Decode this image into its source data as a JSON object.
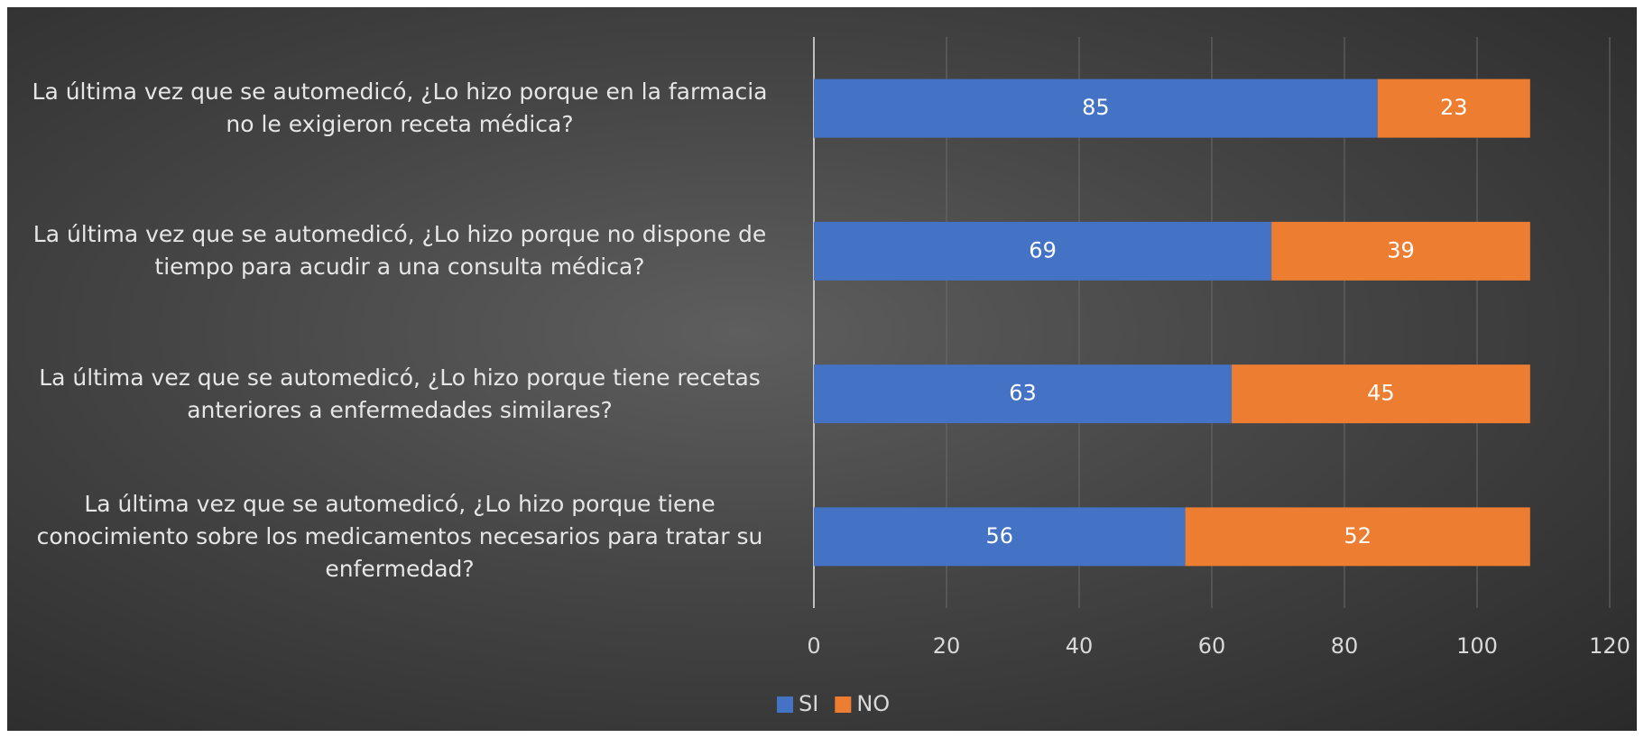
{
  "chart_data": {
    "type": "stacked_barh",
    "categories": [
      "La última vez que se automedicó, ¿Lo hizo porque en la farmacia no le exigieron receta médica?",
      "La última vez que se automedicó, ¿Lo hizo porque no dispone de tiempo para acudir a una consulta médica?",
      "La última vez que se automedicó, ¿Lo hizo porque tiene recetas anteriores a enfermedades similares?",
      "La última vez que se automedicó, ¿Lo hizo porque tiene conocimiento sobre los medicamentos necesarios para tratar su enfermedad?"
    ],
    "series": [
      {
        "name": "SI",
        "color": "#4472c4",
        "values": [
          85,
          69,
          63,
          56
        ]
      },
      {
        "name": "NO",
        "color": "#ed7d31",
        "values": [
          23,
          39,
          45,
          52
        ]
      }
    ],
    "xlim": [
      0,
      120
    ],
    "xticks": [
      0,
      20,
      40,
      60,
      80,
      100,
      120
    ],
    "grid": true,
    "legend": "bottom"
  }
}
